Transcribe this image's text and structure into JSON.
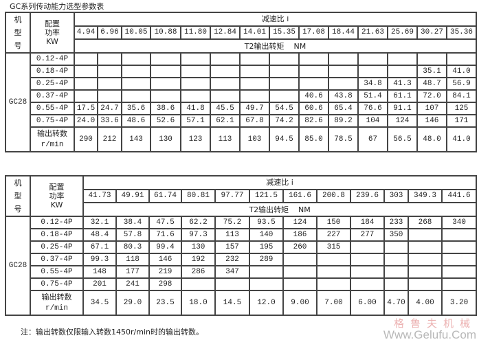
{
  "title": "GC系列传动能力选型参数表",
  "headers": {
    "model": "机型号",
    "model_lines": [
      "机",
      "型",
      "号"
    ],
    "power_lines": [
      "配置",
      "功率",
      "KW"
    ],
    "ratio": "减速比 i",
    "torque": "T2输出转矩    NM",
    "speed_lines": [
      "输出转数",
      "r/min"
    ]
  },
  "tables": [
    {
      "model": "GC28",
      "ratios": [
        "4.94",
        "6.96",
        "10.05",
        "10.88",
        "11.80",
        "12.84",
        "14.01",
        "15.35",
        "17.08",
        "18.44",
        "21.63",
        "25.69",
        "30.27",
        "35.36"
      ],
      "rows": [
        {
          "power": "0.12-4P",
          "values": [
            "",
            "",
            "",
            "",
            "",
            "",
            "",
            "",
            "",
            "",
            "",
            "",
            "",
            ""
          ]
        },
        {
          "power": "0.18-4P",
          "values": [
            "",
            "",
            "",
            "",
            "",
            "",
            "",
            "",
            "",
            "",
            "",
            "",
            "35.1",
            "41.0"
          ]
        },
        {
          "power": "0.25-4P",
          "values": [
            "",
            "",
            "",
            "",
            "",
            "",
            "",
            "",
            "",
            "",
            "34.8",
            "41.3",
            "48.7",
            "56.9"
          ]
        },
        {
          "power": "0.37-4P",
          "values": [
            "",
            "",
            "",
            "",
            "",
            "",
            "",
            "",
            "40.6",
            "43.8",
            "51.4",
            "61.1",
            "72.0",
            "84.1"
          ]
        },
        {
          "power": "0.55-4P",
          "values": [
            "17.5",
            "24.7",
            "35.6",
            "38.6",
            "41.8",
            "45.5",
            "49.7",
            "54.5",
            "60.6",
            "65.4",
            "76.6",
            "91.1",
            "107",
            "125"
          ]
        },
        {
          "power": "0.75-4P",
          "values": [
            "24.0",
            "33.6",
            "48.6",
            "52.6",
            "57.1",
            "62.1",
            "67.8",
            "74.2",
            "82.6",
            "89.2",
            "104",
            "124",
            "146",
            "171"
          ]
        }
      ],
      "speeds": [
        "290",
        "212",
        "143",
        "130",
        "123",
        "113",
        "103",
        "94.5",
        "85.0",
        "78.5",
        "67",
        "56.5",
        "48.0",
        "41.0"
      ]
    },
    {
      "model": "GC28",
      "ratios": [
        "41.73",
        "49.91",
        "61.74",
        "80.81",
        "97.77",
        "121.5",
        "161.6",
        "200.8",
        "239.6",
        "303",
        "349.3",
        "441.6"
      ],
      "rows": [
        {
          "power": "0.12-4P",
          "values": [
            "32.1",
            "38.4",
            "47.5",
            "62.2",
            "75.2",
            "93.5",
            "124",
            "150",
            "184",
            "233",
            "268",
            "340"
          ]
        },
        {
          "power": "0.18-4P",
          "values": [
            "48.4",
            "57.8",
            "71.6",
            "97.3",
            "113",
            "140",
            "186",
            "227",
            "277",
            "350",
            "",
            ""
          ]
        },
        {
          "power": "0.25-4P",
          "values": [
            "67.1",
            "80.3",
            "99.4",
            "130",
            "157",
            "195",
            "260",
            "315",
            "",
            "",
            "",
            ""
          ]
        },
        {
          "power": "0.37-4P",
          "values": [
            "99.3",
            "118",
            "146",
            "192",
            "232",
            "289",
            "",
            "",
            "",
            "",
            "",
            ""
          ]
        },
        {
          "power": "0.55-4P",
          "values": [
            "148",
            "177",
            "219",
            "286",
            "347",
            "",
            "",
            "",
            "",
            "",
            "",
            ""
          ]
        },
        {
          "power": "0.75-4P",
          "values": [
            "201",
            "241",
            "298",
            "",
            "",
            "",
            "",
            "",
            "",
            "",
            "",
            ""
          ]
        }
      ],
      "speeds": [
        "34.5",
        "29.0",
        "23.5",
        "18.0",
        "14.5",
        "12.0",
        "9.00",
        "7.00",
        "6.00",
        "4.70",
        "4.00",
        "3.20"
      ]
    }
  ],
  "note": "注：输出转数仅限输入转数1450r/min时的输出转数。",
  "watermark": {
    "cn": "格鲁夫机械",
    "url": "Www.Gelufu.Com"
  }
}
